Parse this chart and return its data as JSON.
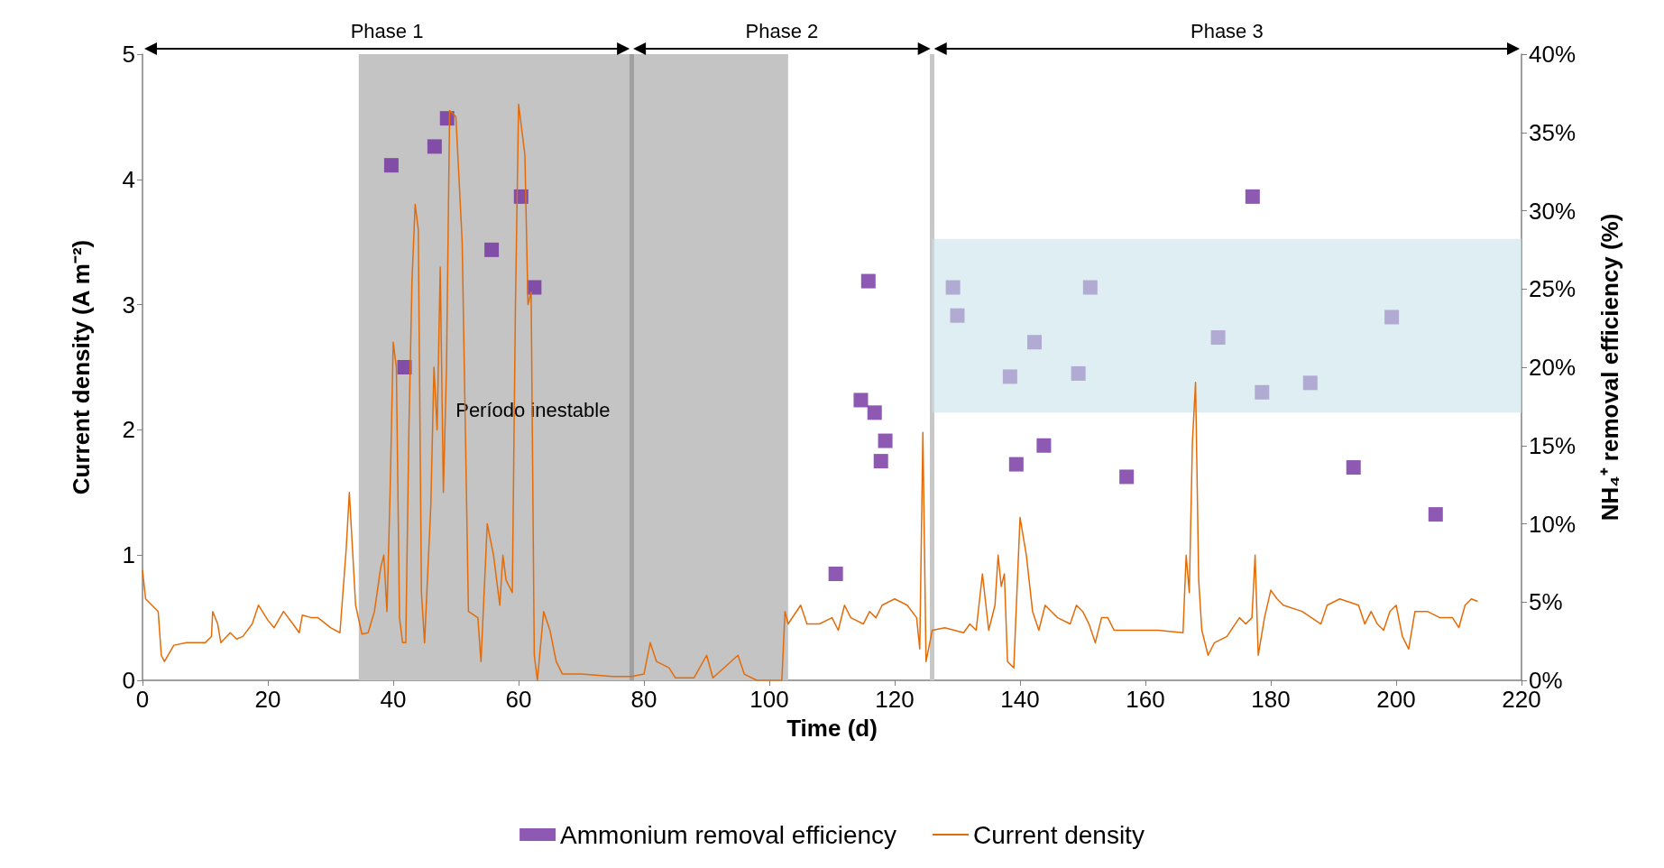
{
  "chart_data": {
    "type": "line",
    "xlabel": "Time (d)",
    "ylabel": "Current density (A m⁻²)",
    "y2label": "NH₄⁺ removal efficiency (%)",
    "xlim": [
      0,
      220
    ],
    "xticks": [
      0,
      20,
      40,
      60,
      80,
      100,
      120,
      140,
      160,
      180,
      200,
      220
    ],
    "ylim": [
      0,
      5
    ],
    "yticks": [
      0,
      1,
      2,
      3,
      4,
      5
    ],
    "y2lim": [
      0,
      40
    ],
    "y2ticks": [
      {
        "value": 0,
        "label": "0%"
      },
      {
        "value": 5,
        "label": "5%"
      },
      {
        "value": 10,
        "label": "10%"
      },
      {
        "value": 15,
        "label": "15%"
      },
      {
        "value": 20,
        "label": "20%"
      },
      {
        "value": 25,
        "label": "25%"
      },
      {
        "value": 30,
        "label": "30%"
      },
      {
        "value": 35,
        "label": "35%"
      },
      {
        "value": 40,
        "label": "40%"
      }
    ],
    "grid": false,
    "legend": "bottom",
    "annotations": [
      "Phase 1",
      "Phase 2",
      "Phase 3"
    ],
    "ref_lines": [
      {
        "axis": "x",
        "value": 78,
        "color": "#a0a0a0"
      },
      {
        "axis": "x",
        "value": 126,
        "color": "#c8c8c8"
      }
    ],
    "bands": [
      {
        "axis": "x",
        "from": 34.5,
        "to": 103,
        "label": "Período inestable",
        "color": "#c4c4c4"
      },
      {
        "axis": "y2",
        "from": 17.1,
        "to": 28.2,
        "color": "#c9e3ea"
      }
    ],
    "series": [
      {
        "name": "Ammonium removal efficiency",
        "type": "scatter",
        "axis": "y2",
        "marker": "square",
        "color": "#7030a0",
        "x": [
          39.7,
          41.8,
          46.6,
          48.6,
          55.7,
          60.4,
          62.5,
          110.6,
          114.6,
          115.8,
          116.8,
          117.8,
          118.5,
          129.3,
          130,
          138.4,
          139.4,
          142.3,
          143.8,
          149.3,
          151.2,
          157,
          171.6,
          177.1,
          178.6,
          186.3,
          193.2,
          199.3,
          206.3
        ],
        "values": [
          32.9,
          20.0,
          34.1,
          35.9,
          27.5,
          30.9,
          25.1,
          6.8,
          17.9,
          25.5,
          17.1,
          14.0,
          15.3,
          25.1,
          23.3,
          19.4,
          13.8,
          21.6,
          15.0,
          19.6,
          25.1,
          13.0,
          21.9,
          30.9,
          18.4,
          19.0,
          13.6,
          23.2,
          10.6
        ]
      },
      {
        "name": "Current density",
        "marker": "none",
        "line_style": "solid",
        "color": "#e36c09",
        "x": [
          0,
          0.5,
          1.5,
          2.5,
          3,
          3.5,
          5,
          7,
          10,
          11,
          11.2,
          12,
          12.5,
          14,
          15,
          16,
          17.5,
          18.5,
          20,
          21,
          22.5,
          24,
          25,
          25.5,
          27,
          28,
          30,
          31.5,
          32.5,
          33,
          34,
          35,
          36,
          37,
          38,
          38.5,
          39,
          39.5,
          40,
          40.5,
          41,
          41.5,
          42,
          42.5,
          43,
          43.5,
          44,
          44.5,
          45,
          46,
          46.5,
          47,
          47.5,
          48,
          48.5,
          49,
          50,
          50.5,
          51,
          52,
          53.5,
          54,
          55,
          56,
          57,
          57.5,
          58,
          59,
          59.5,
          60,
          61,
          61.5,
          62,
          62.5,
          63,
          64,
          65,
          66,
          67,
          70,
          75,
          78,
          80,
          81,
          82,
          84,
          85,
          88,
          90,
          91,
          95,
          96,
          98,
          102,
          102.5,
          103,
          105,
          106,
          108,
          110,
          111,
          112,
          113,
          115,
          116,
          117,
          118,
          120,
          122,
          123.5,
          124,
          124.5,
          125,
          126,
          128,
          131,
          132,
          133,
          134,
          135,
          136,
          136.5,
          137,
          137.5,
          138,
          139,
          139.5,
          140,
          141,
          142,
          143,
          144,
          145,
          146,
          148,
          149,
          150,
          151,
          152,
          153,
          154,
          155,
          158,
          162,
          166,
          166.5,
          167,
          167.5,
          168,
          168.5,
          169,
          170,
          171,
          173,
          175,
          176,
          177,
          177.5,
          178,
          179,
          180,
          181,
          182,
          185,
          188,
          189,
          191,
          194,
          195,
          196,
          197,
          198,
          199,
          200,
          201,
          202,
          203,
          205,
          207,
          209,
          210,
          211,
          212,
          213
        ],
        "values": [
          0.88,
          0.65,
          0.6,
          0.55,
          0.2,
          0.15,
          0.28,
          0.3,
          0.3,
          0.35,
          0.55,
          0.45,
          0.3,
          0.38,
          0.33,
          0.35,
          0.45,
          0.6,
          0.48,
          0.42,
          0.55,
          0.45,
          0.38,
          0.52,
          0.5,
          0.5,
          0.42,
          0.38,
          1.05,
          1.5,
          0.6,
          0.37,
          0.38,
          0.55,
          0.9,
          1.0,
          0.55,
          1.5,
          2.7,
          2.5,
          0.5,
          0.3,
          0.3,
          2.0,
          3.2,
          3.8,
          3.6,
          0.7,
          0.3,
          1.4,
          2.5,
          2.0,
          3.3,
          1.5,
          2.5,
          4.55,
          4.5,
          4.0,
          3.5,
          0.55,
          0.5,
          0.15,
          1.25,
          1.0,
          0.6,
          1.0,
          0.8,
          0.7,
          3.0,
          4.6,
          4.2,
          3.0,
          3.1,
          0.2,
          0,
          0.55,
          0.4,
          0.15,
          0.05,
          0.05,
          0.03,
          0.03,
          0.05,
          0.3,
          0.15,
          0.1,
          0.02,
          0.02,
          0.2,
          0.02,
          0.2,
          0.05,
          0,
          0,
          0.55,
          0.45,
          0.6,
          0.45,
          0.45,
          0.5,
          0.4,
          0.6,
          0.5,
          0.45,
          0.55,
          0.5,
          0.6,
          0.65,
          0.6,
          0.5,
          0.25,
          1.98,
          0.15,
          0.4,
          0.42,
          0.38,
          0.45,
          0.4,
          0.85,
          0.4,
          0.6,
          1.0,
          0.75,
          0.85,
          0.15,
          0.1,
          0.7,
          1.3,
          1.0,
          0.55,
          0.4,
          0.6,
          0.55,
          0.5,
          0.45,
          0.6,
          0.55,
          0.45,
          0.3,
          0.5,
          0.5,
          0.4,
          0.4,
          0.4,
          0.38,
          1.0,
          0.7,
          1.9,
          2.38,
          0.8,
          0.4,
          0.2,
          0.3,
          0.35,
          0.5,
          0.45,
          0.5,
          1.0,
          0.2,
          0.5,
          0.72,
          0.65,
          0.6,
          0.55,
          0.45,
          0.6,
          0.65,
          0.6,
          0.45,
          0.55,
          0.45,
          0.4,
          0.55,
          0.6,
          0.35,
          0.25,
          0.55,
          0.55,
          0.5,
          0.5,
          0.42,
          0.6,
          0.65,
          0.63
        ]
      }
    ]
  }
}
